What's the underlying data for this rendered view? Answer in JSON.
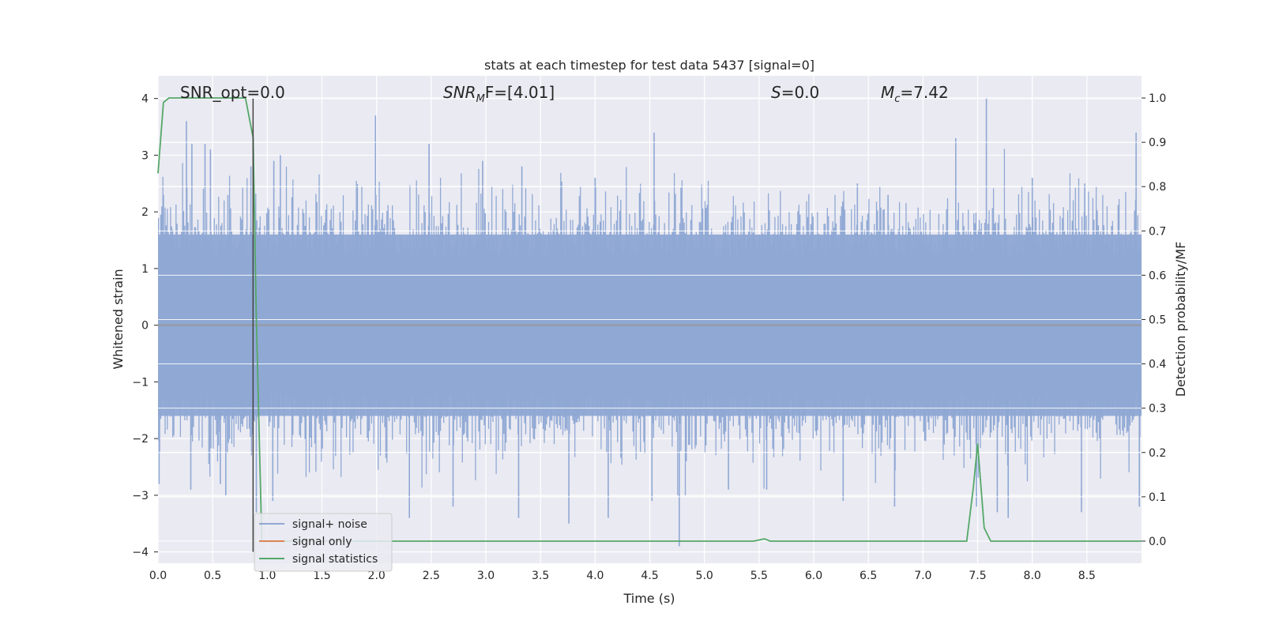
{
  "chart_data": {
    "type": "line",
    "title": "stats at each timestep for test data 5437 [signal=0]",
    "xlabel": "Time (s)",
    "ylabel": "Whitened strain",
    "y2label": "Detection probability/MF",
    "xlim": [
      0.0,
      9.0
    ],
    "ylim": [
      -4.2,
      4.4
    ],
    "y2lim": [
      -0.05,
      1.05
    ],
    "xticks": [
      "0.0",
      "0.5",
      "1.0",
      "1.5",
      "2.0",
      "2.5",
      "3.0",
      "3.5",
      "4.0",
      "4.5",
      "5.0",
      "5.5",
      "6.0",
      "6.5",
      "7.0",
      "7.5",
      "8.0",
      "8.5"
    ],
    "yticks": [
      "−4",
      "−3",
      "−2",
      "−1",
      "0",
      "1",
      "2",
      "3",
      "4"
    ],
    "y2ticks": [
      "0.0",
      "0.1",
      "0.2",
      "0.3",
      "0.4",
      "0.5",
      "0.6",
      "0.7",
      "0.8",
      "0.9",
      "1.0"
    ],
    "grid": true,
    "legend_position": "lower-left",
    "annotations": {
      "snr_opt": "SNR_opt=0.0",
      "snr_mf_name": "SNR",
      "snr_mf_sub": "M",
      "snr_mf_rest": "F=[4.01]",
      "s_name": "S",
      "s_value": "=0.0",
      "mc_name": "M",
      "mc_sub": "c",
      "mc_value": "=7.42"
    },
    "series": [
      {
        "name": "signal+ noise",
        "color": "#8fa8d4",
        "description_kind": "noise",
        "envelope_peaks_pos": [
          [
            0.05,
            2.3
          ],
          [
            0.26,
            3.6
          ],
          [
            0.31,
            3.2
          ],
          [
            0.43,
            3.2
          ],
          [
            0.48,
            3.1
          ],
          [
            0.64,
            2.3
          ],
          [
            0.85,
            2.8
          ],
          [
            1.06,
            2.9
          ],
          [
            1.12,
            3.0
          ],
          [
            1.99,
            3.7
          ],
          [
            2.48,
            3.2
          ],
          [
            2.97,
            2.9
          ],
          [
            3.33,
            2.8
          ],
          [
            4.0,
            2.6
          ],
          [
            4.54,
            3.4
          ],
          [
            6.4,
            2.5
          ],
          [
            6.68,
            2.3
          ],
          [
            7.3,
            3.3
          ],
          [
            7.58,
            4.0
          ],
          [
            8.0,
            2.6
          ],
          [
            8.48,
            2.5
          ],
          [
            8.95,
            3.4
          ]
        ],
        "envelope_peaks_neg": [
          [
            0.01,
            -2.8
          ],
          [
            0.3,
            -2.9
          ],
          [
            0.57,
            -2.8
          ],
          [
            0.62,
            -3.0
          ],
          [
            0.9,
            -3.3
          ],
          [
            1.05,
            -3.1
          ],
          [
            2.3,
            -3.4
          ],
          [
            2.7,
            -3.2
          ],
          [
            3.3,
            -3.4
          ],
          [
            3.76,
            -3.5
          ],
          [
            4.12,
            -3.4
          ],
          [
            4.52,
            -3.1
          ],
          [
            4.77,
            -3.9
          ],
          [
            5.22,
            -2.9
          ],
          [
            5.57,
            -2.9
          ],
          [
            6.27,
            -3.1
          ],
          [
            6.74,
            -3.2
          ],
          [
            7.49,
            -3.2
          ],
          [
            7.68,
            -3.3
          ],
          [
            7.78,
            -3.4
          ],
          [
            8.45,
            -3.3
          ],
          [
            8.98,
            -3.2
          ]
        ]
      },
      {
        "name": "signal only",
        "color": "#dd8452",
        "values_note": "",
        "x": [
          0.0,
          9.0
        ],
        "y": [
          0.0,
          0.0
        ]
      },
      {
        "name": "signal statistics",
        "color": "#55a868",
        "axis": "right",
        "x": [
          0.0,
          0.05,
          0.1,
          0.2,
          0.3,
          0.4,
          0.5,
          0.6,
          0.7,
          0.8,
          0.87,
          0.9,
          0.95,
          1.0,
          2.0,
          3.0,
          4.0,
          5.0,
          5.45,
          5.55,
          5.6,
          5.7,
          6.0,
          7.0,
          7.4,
          7.46,
          7.5,
          7.56,
          7.62,
          7.7,
          8.0,
          9.0
        ],
        "y": [
          0.83,
          0.99,
          1.0,
          1.0,
          1.0,
          1.0,
          1.0,
          1.0,
          1.0,
          1.0,
          0.91,
          0.5,
          0.0,
          0.0,
          0.0,
          0.0,
          0.0,
          0.0,
          0.0,
          0.005,
          0.0,
          0.0,
          0.0,
          0.0,
          0.0,
          0.12,
          0.22,
          0.03,
          0.0,
          0.0,
          0.0,
          0.0
        ]
      }
    ],
    "vline": {
      "x": 0.87,
      "color": "#444444"
    }
  }
}
